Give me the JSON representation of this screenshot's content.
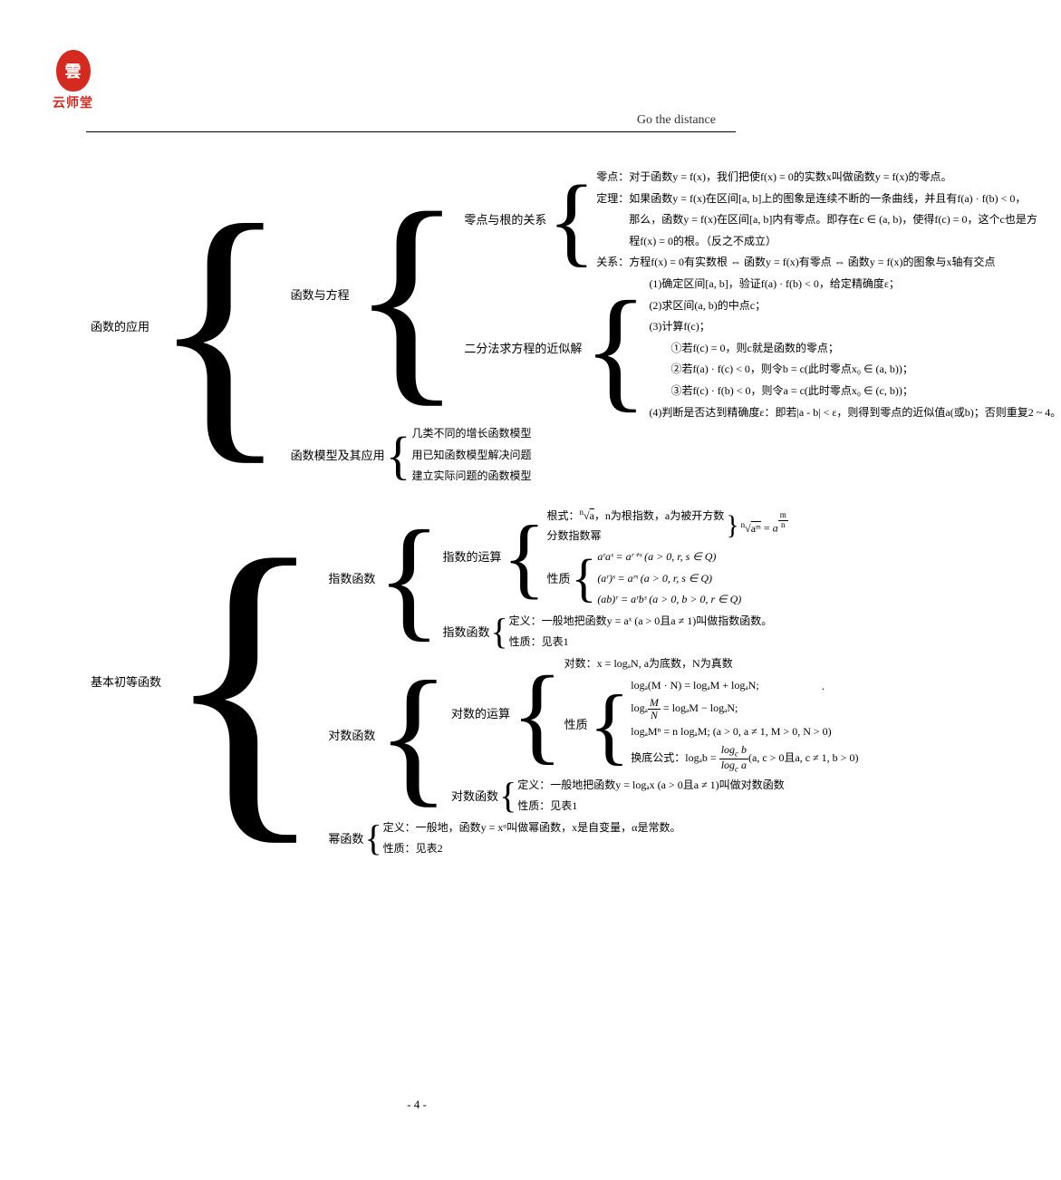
{
  "logo": {
    "circle_text": "雲",
    "brand": "云师堂",
    "circle_bg": "#d42a1f",
    "text_color": "#d42a1f"
  },
  "header": {
    "tagline": "Go the distance"
  },
  "page_number": "- 4 -",
  "section1": {
    "root": "函数的应用",
    "b1": {
      "label": "函数与方程",
      "group1": {
        "label": "零点与根的关系",
        "l1": "零点：对于函数y = f(x)，我们把使f(x) = 0的实数x叫做函数y = f(x)的零点。",
        "l2": "定理：如果函数y = f(x)在区间[a, b]上的图象是连续不断的一条曲线，并且有f(a) · f(b) < 0，",
        "l3": "　　　那么，函数y = f(x)在区间[a, b]内有零点。即存在c ∈ (a, b)，使得f(c) = 0，这个c也是方",
        "l4": "　　　程f(x) = 0的根。（反之不成立）",
        "l5": "关系：方程f(x) = 0有实数根 ⇔ 函数y = f(x)有零点 ⇔ 函数y = f(x)的图象与x轴有交点"
      },
      "group2": {
        "label": "二分法求方程的近似解",
        "l1": "(1)确定区间[a, b]，验证f(a) · f(b) < 0，给定精确度ε；",
        "l2": "(2)求区间(a, b)的中点c；",
        "l3": "(3)计算f(c)；",
        "l4": "　　①若f(c) = 0，则c就是函数的零点；",
        "l5": "　　②若f(a) · f(c) < 0，则令b = c(此时零点x₀ ∈ (a, b))；",
        "l6": "　　③若f(c) · f(b) < 0，则令a = c(此时零点x₀ ∈ (c, b))；",
        "l7": "(4)判断是否达到精确度ε：即若|a - b| < ε，则得到零点的近似值a(或b)；否则重复2 ~ 4。"
      }
    },
    "b2": {
      "label": "函数模型及其应用",
      "l1": "几类不同的增长函数模型",
      "l2": "用已知函数模型解决问题",
      "l3": "建立实际问题的函数模型"
    }
  },
  "section2": {
    "root": "基本初等函数",
    "exp": {
      "label": "指数函数",
      "op": {
        "label": "指数的运算",
        "root_text_a": "根式：",
        "root_text_b": "，n为根指数，a为被开方数",
        "frac_label": "分数指数幂",
        "prop_label": "性质",
        "p1": "aʳaˢ = aʳ⁺ˢ (a > 0, r, s ∈ Q)",
        "p2": "(aʳ)ˢ = aʳˢ (a > 0, r, s ∈ Q)",
        "p3": "(ab)ʳ = aʳbˢ (a > 0, b > 0, r ∈ Q)"
      },
      "fn": {
        "label": "指数函数",
        "def": "定义：一般地把函数y = aˣ (a > 0且a ≠ 1)叫做指数函数。",
        "prop": "性质：见表1"
      }
    },
    "log": {
      "label": "对数函数",
      "op": {
        "label": "对数的运算",
        "def": "对数：x = logₐN, a为底数，N为真数",
        "prop_label": "性质",
        "p1": "logₐ(M · N) = logₐM + logₐN;",
        "p2_a": "logₐ",
        "p2_b": " = logₐM − logₐN;",
        "p3": "logₐMⁿ = n logₐM; (a > 0, a ≠ 1, M > 0, N > 0)",
        "p4_a": "换底公式：logₐb = ",
        "p4_b": "(a, c > 0且a, c ≠ 1, b > 0)"
      },
      "fn": {
        "label": "对数函数",
        "def": "定义：一般地把函数y = logₐx (a > 0且a ≠ 1)叫做对数函数",
        "prop": "性质：见表1"
      }
    },
    "pow": {
      "label": "幂函数",
      "def": "定义：一般地，函数y = xᵅ叫做幂函数，x是自变量，α是常数。",
      "prop": "性质：见表2"
    }
  },
  "colors": {
    "text": "#000000",
    "bg": "#ffffff",
    "rule": "#000000"
  },
  "typography": {
    "body_font": "SimSun",
    "math_font": "Times New Roman",
    "body_size_pt": 9,
    "label_size_pt": 10
  }
}
